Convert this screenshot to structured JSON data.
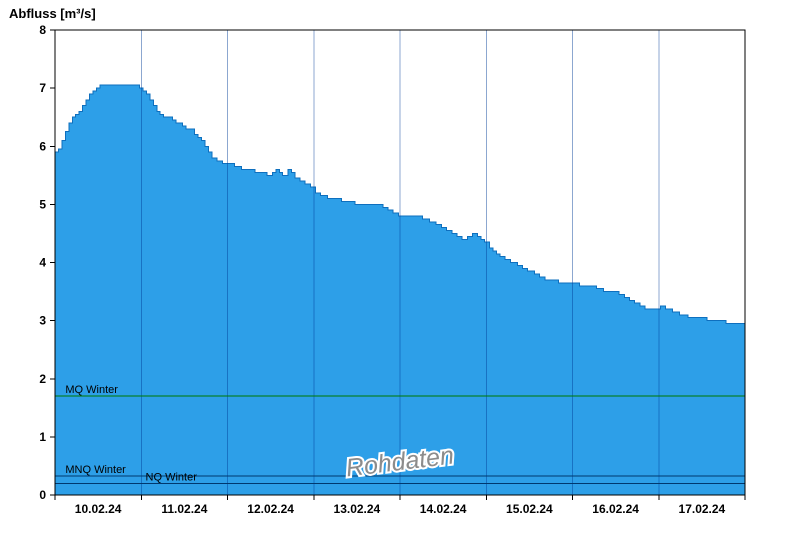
{
  "title": "Abfluss [m³/s]",
  "watermark": "Rohdaten",
  "chart_data": {
    "type": "area",
    "title": "Abfluss [m³/s]",
    "ylabel": "Abfluss [m³/s]",
    "xlabel": "",
    "ylim": [
      0,
      8
    ],
    "y_ticks": [
      0,
      1,
      2,
      3,
      4,
      5,
      6,
      7,
      8
    ],
    "x_domain_days": [
      0,
      8
    ],
    "grid_days": [
      1,
      2,
      3,
      4,
      5,
      6,
      7
    ],
    "x_day_labels": [
      "10.02.24",
      "11.02.24",
      "12.02.24",
      "13.02.24",
      "14.02.24",
      "15.02.24",
      "16.02.24",
      "17.02.24"
    ],
    "grid": "vertical-only",
    "legend": "none",
    "reference_lines": [
      {
        "label": "MQ Winter",
        "value": 1.7,
        "color": "#007A00",
        "label_day": 0.12
      },
      {
        "label": "MNQ Winter",
        "value": 0.33,
        "color": "#00386E",
        "label_day": 0.12
      },
      {
        "label": "NQ Winter",
        "value": 0.2,
        "color": "#00386E",
        "label_day": 1.05
      }
    ],
    "colors": {
      "fill": "#2D9FE8",
      "line": "#0E6FBE",
      "gridline": "rgba(0,60,150,0.45)",
      "axis": "#000000",
      "watermark": "#8c8c8c"
    },
    "series": [
      {
        "name": "Abfluss Rohdaten",
        "unit": "m³/s",
        "points": [
          [
            0.0,
            5.9
          ],
          [
            0.04,
            5.95
          ],
          [
            0.08,
            6.1
          ],
          [
            0.12,
            6.25
          ],
          [
            0.16,
            6.4
          ],
          [
            0.2,
            6.5
          ],
          [
            0.24,
            6.55
          ],
          [
            0.28,
            6.6
          ],
          [
            0.32,
            6.7
          ],
          [
            0.36,
            6.8
          ],
          [
            0.4,
            6.9
          ],
          [
            0.44,
            6.95
          ],
          [
            0.48,
            7.0
          ],
          [
            0.52,
            7.05
          ],
          [
            0.6,
            7.05
          ],
          [
            0.68,
            7.05
          ],
          [
            0.76,
            7.05
          ],
          [
            0.84,
            7.05
          ],
          [
            0.92,
            7.05
          ],
          [
            0.98,
            7.0
          ],
          [
            1.02,
            6.95
          ],
          [
            1.06,
            6.9
          ],
          [
            1.1,
            6.8
          ],
          [
            1.14,
            6.7
          ],
          [
            1.18,
            6.6
          ],
          [
            1.22,
            6.55
          ],
          [
            1.26,
            6.5
          ],
          [
            1.32,
            6.5
          ],
          [
            1.36,
            6.45
          ],
          [
            1.4,
            6.4
          ],
          [
            1.44,
            6.4
          ],
          [
            1.48,
            6.35
          ],
          [
            1.52,
            6.3
          ],
          [
            1.58,
            6.3
          ],
          [
            1.62,
            6.2
          ],
          [
            1.66,
            6.15
          ],
          [
            1.7,
            6.1
          ],
          [
            1.74,
            6.0
          ],
          [
            1.78,
            5.9
          ],
          [
            1.82,
            5.8
          ],
          [
            1.88,
            5.75
          ],
          [
            1.94,
            5.7
          ],
          [
            2.0,
            5.7
          ],
          [
            2.08,
            5.65
          ],
          [
            2.16,
            5.6
          ],
          [
            2.24,
            5.6
          ],
          [
            2.32,
            5.55
          ],
          [
            2.4,
            5.55
          ],
          [
            2.46,
            5.5
          ],
          [
            2.52,
            5.55
          ],
          [
            2.56,
            5.6
          ],
          [
            2.6,
            5.55
          ],
          [
            2.64,
            5.5
          ],
          [
            2.7,
            5.6
          ],
          [
            2.74,
            5.55
          ],
          [
            2.78,
            5.45
          ],
          [
            2.84,
            5.4
          ],
          [
            2.9,
            5.35
          ],
          [
            2.96,
            5.3
          ],
          [
            3.02,
            5.2
          ],
          [
            3.08,
            5.15
          ],
          [
            3.16,
            5.1
          ],
          [
            3.24,
            5.1
          ],
          [
            3.32,
            5.05
          ],
          [
            3.4,
            5.05
          ],
          [
            3.48,
            5.0
          ],
          [
            3.6,
            5.0
          ],
          [
            3.72,
            5.0
          ],
          [
            3.8,
            4.95
          ],
          [
            3.86,
            4.9
          ],
          [
            3.92,
            4.85
          ],
          [
            3.98,
            4.8
          ],
          [
            4.08,
            4.8
          ],
          [
            4.18,
            4.8
          ],
          [
            4.26,
            4.75
          ],
          [
            4.34,
            4.7
          ],
          [
            4.42,
            4.65
          ],
          [
            4.48,
            4.6
          ],
          [
            4.54,
            4.55
          ],
          [
            4.6,
            4.5
          ],
          [
            4.66,
            4.45
          ],
          [
            4.72,
            4.4
          ],
          [
            4.78,
            4.45
          ],
          [
            4.84,
            4.5
          ],
          [
            4.9,
            4.45
          ],
          [
            4.94,
            4.4
          ],
          [
            4.98,
            4.35
          ],
          [
            5.04,
            4.25
          ],
          [
            5.08,
            4.2
          ],
          [
            5.12,
            4.15
          ],
          [
            5.16,
            4.1
          ],
          [
            5.22,
            4.05
          ],
          [
            5.28,
            4.0
          ],
          [
            5.36,
            3.95
          ],
          [
            5.42,
            3.9
          ],
          [
            5.48,
            3.85
          ],
          [
            5.56,
            3.8
          ],
          [
            5.62,
            3.75
          ],
          [
            5.68,
            3.7
          ],
          [
            5.76,
            3.7
          ],
          [
            5.84,
            3.65
          ],
          [
            5.96,
            3.65
          ],
          [
            6.08,
            3.6
          ],
          [
            6.2,
            3.6
          ],
          [
            6.28,
            3.55
          ],
          [
            6.36,
            3.5
          ],
          [
            6.46,
            3.5
          ],
          [
            6.54,
            3.45
          ],
          [
            6.6,
            3.4
          ],
          [
            6.66,
            3.35
          ],
          [
            6.72,
            3.3
          ],
          [
            6.78,
            3.25
          ],
          [
            6.84,
            3.2
          ],
          [
            6.94,
            3.2
          ],
          [
            7.02,
            3.25
          ],
          [
            7.08,
            3.2
          ],
          [
            7.16,
            3.15
          ],
          [
            7.24,
            3.1
          ],
          [
            7.34,
            3.05
          ],
          [
            7.46,
            3.05
          ],
          [
            7.56,
            3.0
          ],
          [
            7.68,
            3.0
          ],
          [
            7.78,
            2.95
          ],
          [
            7.9,
            2.95
          ],
          [
            8.0,
            2.9
          ]
        ]
      }
    ]
  }
}
